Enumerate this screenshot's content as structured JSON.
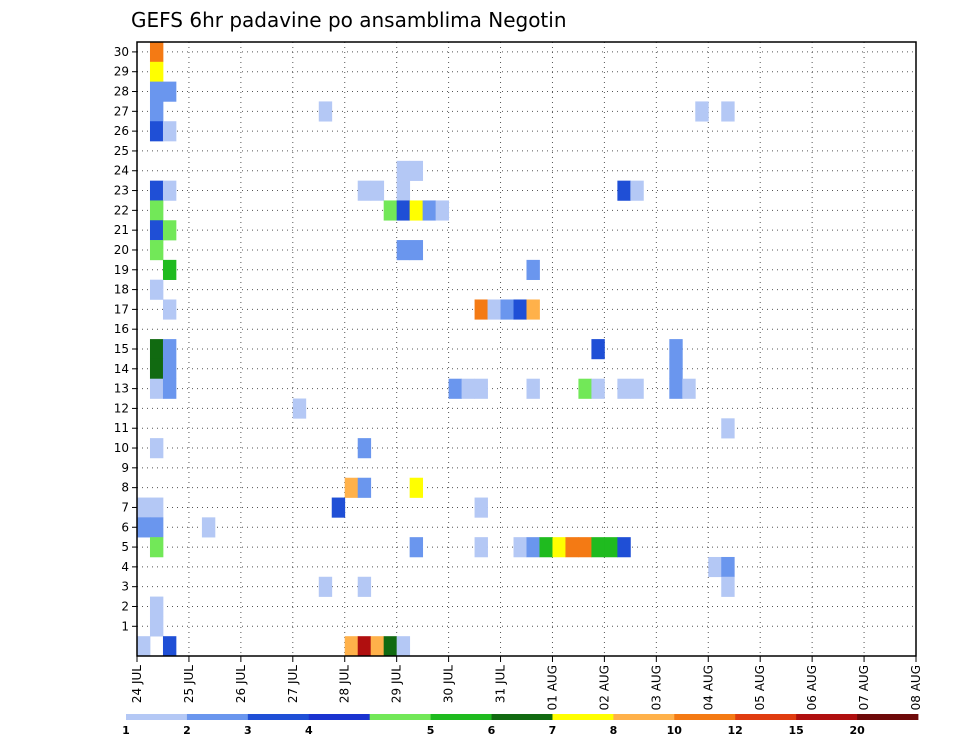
{
  "chart_data": {
    "type": "heatmap",
    "title": "GEFS 6hr padavine po ansamblima Negotin",
    "x_axis": {
      "tick_labels": [
        "24 JUL",
        "25 JUL",
        "26 JUL",
        "27 JUL",
        "28 JUL",
        "29 JUL",
        "30 JUL",
        "31 JUL",
        "01 AUG",
        "02 AUG",
        "03 AUG",
        "04 AUG",
        "05 AUG",
        "06 AUG",
        "07 AUG",
        "08 AUG"
      ],
      "range_days": [
        0,
        15
      ],
      "step_days": 0.25
    },
    "y_axis": {
      "tick_labels": [
        "1",
        "2",
        "3",
        "4",
        "5",
        "6",
        "7",
        "8",
        "9",
        "10",
        "11",
        "12",
        "13",
        "14",
        "15",
        "16",
        "17",
        "18",
        "19",
        "20",
        "21",
        "22",
        "23",
        "24",
        "25",
        "26",
        "27",
        "28",
        "29",
        "30"
      ],
      "range": [
        0,
        30
      ]
    },
    "grid": "dotted",
    "colorbar": {
      "labels": [
        "1",
        "2",
        "3",
        "4",
        "5",
        "6",
        "7",
        "8",
        "10",
        "12",
        "15",
        "20"
      ],
      "colors": [
        "#b4c8f5",
        "#6a96ee",
        "#1f4fd6",
        "#1a33d0",
        "#72e858",
        "#1fbb1f",
        "#116a11",
        "#ffff00",
        "#ffb14a",
        "#f47a14",
        "#e03c10",
        "#b00f0f",
        "#6e0a0a"
      ]
    },
    "cells": [
      [
        1,
        30,
        "#f47a14"
      ],
      [
        1,
        29,
        "#ffff00"
      ],
      [
        1,
        28,
        "#6a96ee"
      ],
      [
        2,
        28,
        "#6a96ee"
      ],
      [
        1,
        27,
        "#6a96ee"
      ],
      [
        1,
        26,
        "#1f4fd6"
      ],
      [
        2,
        26,
        "#b4c8f5"
      ],
      [
        1,
        23,
        "#1f4fd6"
      ],
      [
        2,
        23,
        "#b4c8f5"
      ],
      [
        1,
        22,
        "#72e858"
      ],
      [
        1,
        21,
        "#1f4fd6"
      ],
      [
        2,
        21,
        "#72e858"
      ],
      [
        1,
        20,
        "#72e858"
      ],
      [
        2,
        19,
        "#1fbb1f"
      ],
      [
        1,
        18,
        "#b4c8f5"
      ],
      [
        2,
        17,
        "#b4c8f5"
      ],
      [
        1,
        15,
        "#116a11"
      ],
      [
        2,
        15,
        "#6a96ee"
      ],
      [
        1,
        14,
        "#116a11"
      ],
      [
        2,
        14,
        "#6a96ee"
      ],
      [
        1,
        13,
        "#b4c8f5"
      ],
      [
        2,
        13,
        "#6a96ee"
      ],
      [
        1,
        10,
        "#b4c8f5"
      ],
      [
        0,
        7,
        "#b4c8f5"
      ],
      [
        1,
        7,
        "#b4c8f5"
      ],
      [
        0,
        6,
        "#6a96ee"
      ],
      [
        1,
        6,
        "#6a96ee"
      ],
      [
        1,
        5,
        "#72e858"
      ],
      [
        1,
        2,
        "#b4c8f5"
      ],
      [
        1,
        1,
        "#b4c8f5"
      ],
      [
        0,
        0,
        "#b4c8f5"
      ],
      [
        2,
        0,
        "#1f4fd6"
      ],
      [
        5,
        6,
        "#b4c8f5"
      ],
      [
        12,
        12,
        "#b4c8f5"
      ],
      [
        14,
        27,
        "#b4c8f5"
      ],
      [
        14,
        3,
        "#b4c8f5"
      ],
      [
        15,
        7,
        "#1f4fd6"
      ],
      [
        16,
        8,
        "#ffb14a"
      ],
      [
        17,
        8,
        "#6a96ee"
      ],
      [
        17,
        10,
        "#6a96ee"
      ],
      [
        17,
        3,
        "#b4c8f5"
      ],
      [
        16,
        0,
        "#ffb14a"
      ],
      [
        17,
        0,
        "#b00f0f"
      ],
      [
        18,
        0,
        "#ffb14a"
      ],
      [
        19,
        0,
        "#116a11"
      ],
      [
        20,
        0,
        "#b4c8f5"
      ],
      [
        17,
        23,
        "#b4c8f5"
      ],
      [
        18,
        23,
        "#b4c8f5"
      ],
      [
        20,
        24,
        "#b4c8f5"
      ],
      [
        21,
        24,
        "#b4c8f5"
      ],
      [
        20,
        23,
        "#b4c8f5"
      ],
      [
        19,
        22,
        "#72e858"
      ],
      [
        20,
        22,
        "#1f4fd6"
      ],
      [
        21,
        22,
        "#ffff00"
      ],
      [
        22,
        22,
        "#6a96ee"
      ],
      [
        23,
        22,
        "#b4c8f5"
      ],
      [
        20,
        20,
        "#6a96ee"
      ],
      [
        21,
        20,
        "#6a96ee"
      ],
      [
        21,
        8,
        "#ffff00"
      ],
      [
        21,
        5,
        "#6a96ee"
      ],
      [
        24,
        13,
        "#6a96ee"
      ],
      [
        25,
        13,
        "#b4c8f5"
      ],
      [
        26,
        13,
        "#b4c8f5"
      ],
      [
        26,
        7,
        "#b4c8f5"
      ],
      [
        26,
        5,
        "#b4c8f5"
      ],
      [
        26,
        17,
        "#f47a14"
      ],
      [
        27,
        17,
        "#b4c8f5"
      ],
      [
        28,
        17,
        "#6a96ee"
      ],
      [
        29,
        17,
        "#1f4fd6"
      ],
      [
        30,
        17,
        "#ffb14a"
      ],
      [
        30,
        19,
        "#6a96ee"
      ],
      [
        30,
        13,
        "#b4c8f5"
      ],
      [
        29,
        5,
        "#b4c8f5"
      ],
      [
        30,
        5,
        "#6a96ee"
      ],
      [
        31,
        5,
        "#1fbb1f"
      ],
      [
        32,
        5,
        "#ffff00"
      ],
      [
        33,
        5,
        "#f47a14"
      ],
      [
        34,
        5,
        "#f47a14"
      ],
      [
        35,
        5,
        "#1fbb1f"
      ],
      [
        36,
        5,
        "#1fbb1f"
      ],
      [
        37,
        5,
        "#1f4fd6"
      ],
      [
        34,
        13,
        "#72e858"
      ],
      [
        35,
        13,
        "#b4c8f5"
      ],
      [
        35,
        15,
        "#1f4fd6"
      ],
      [
        37,
        23,
        "#1f4fd6"
      ],
      [
        38,
        23,
        "#b4c8f5"
      ],
      [
        37,
        13,
        "#b4c8f5"
      ],
      [
        38,
        13,
        "#b4c8f5"
      ],
      [
        41,
        15,
        "#6a96ee"
      ],
      [
        41,
        14,
        "#6a96ee"
      ],
      [
        41,
        13,
        "#6a96ee"
      ],
      [
        42,
        13,
        "#b4c8f5"
      ],
      [
        43,
        27,
        "#b4c8f5"
      ],
      [
        45,
        27,
        "#b4c8f5"
      ],
      [
        45,
        11,
        "#b4c8f5"
      ],
      [
        44,
        4,
        "#b4c8f5"
      ],
      [
        45,
        4,
        "#6a96ee"
      ],
      [
        45,
        3,
        "#b4c8f5"
      ]
    ]
  }
}
